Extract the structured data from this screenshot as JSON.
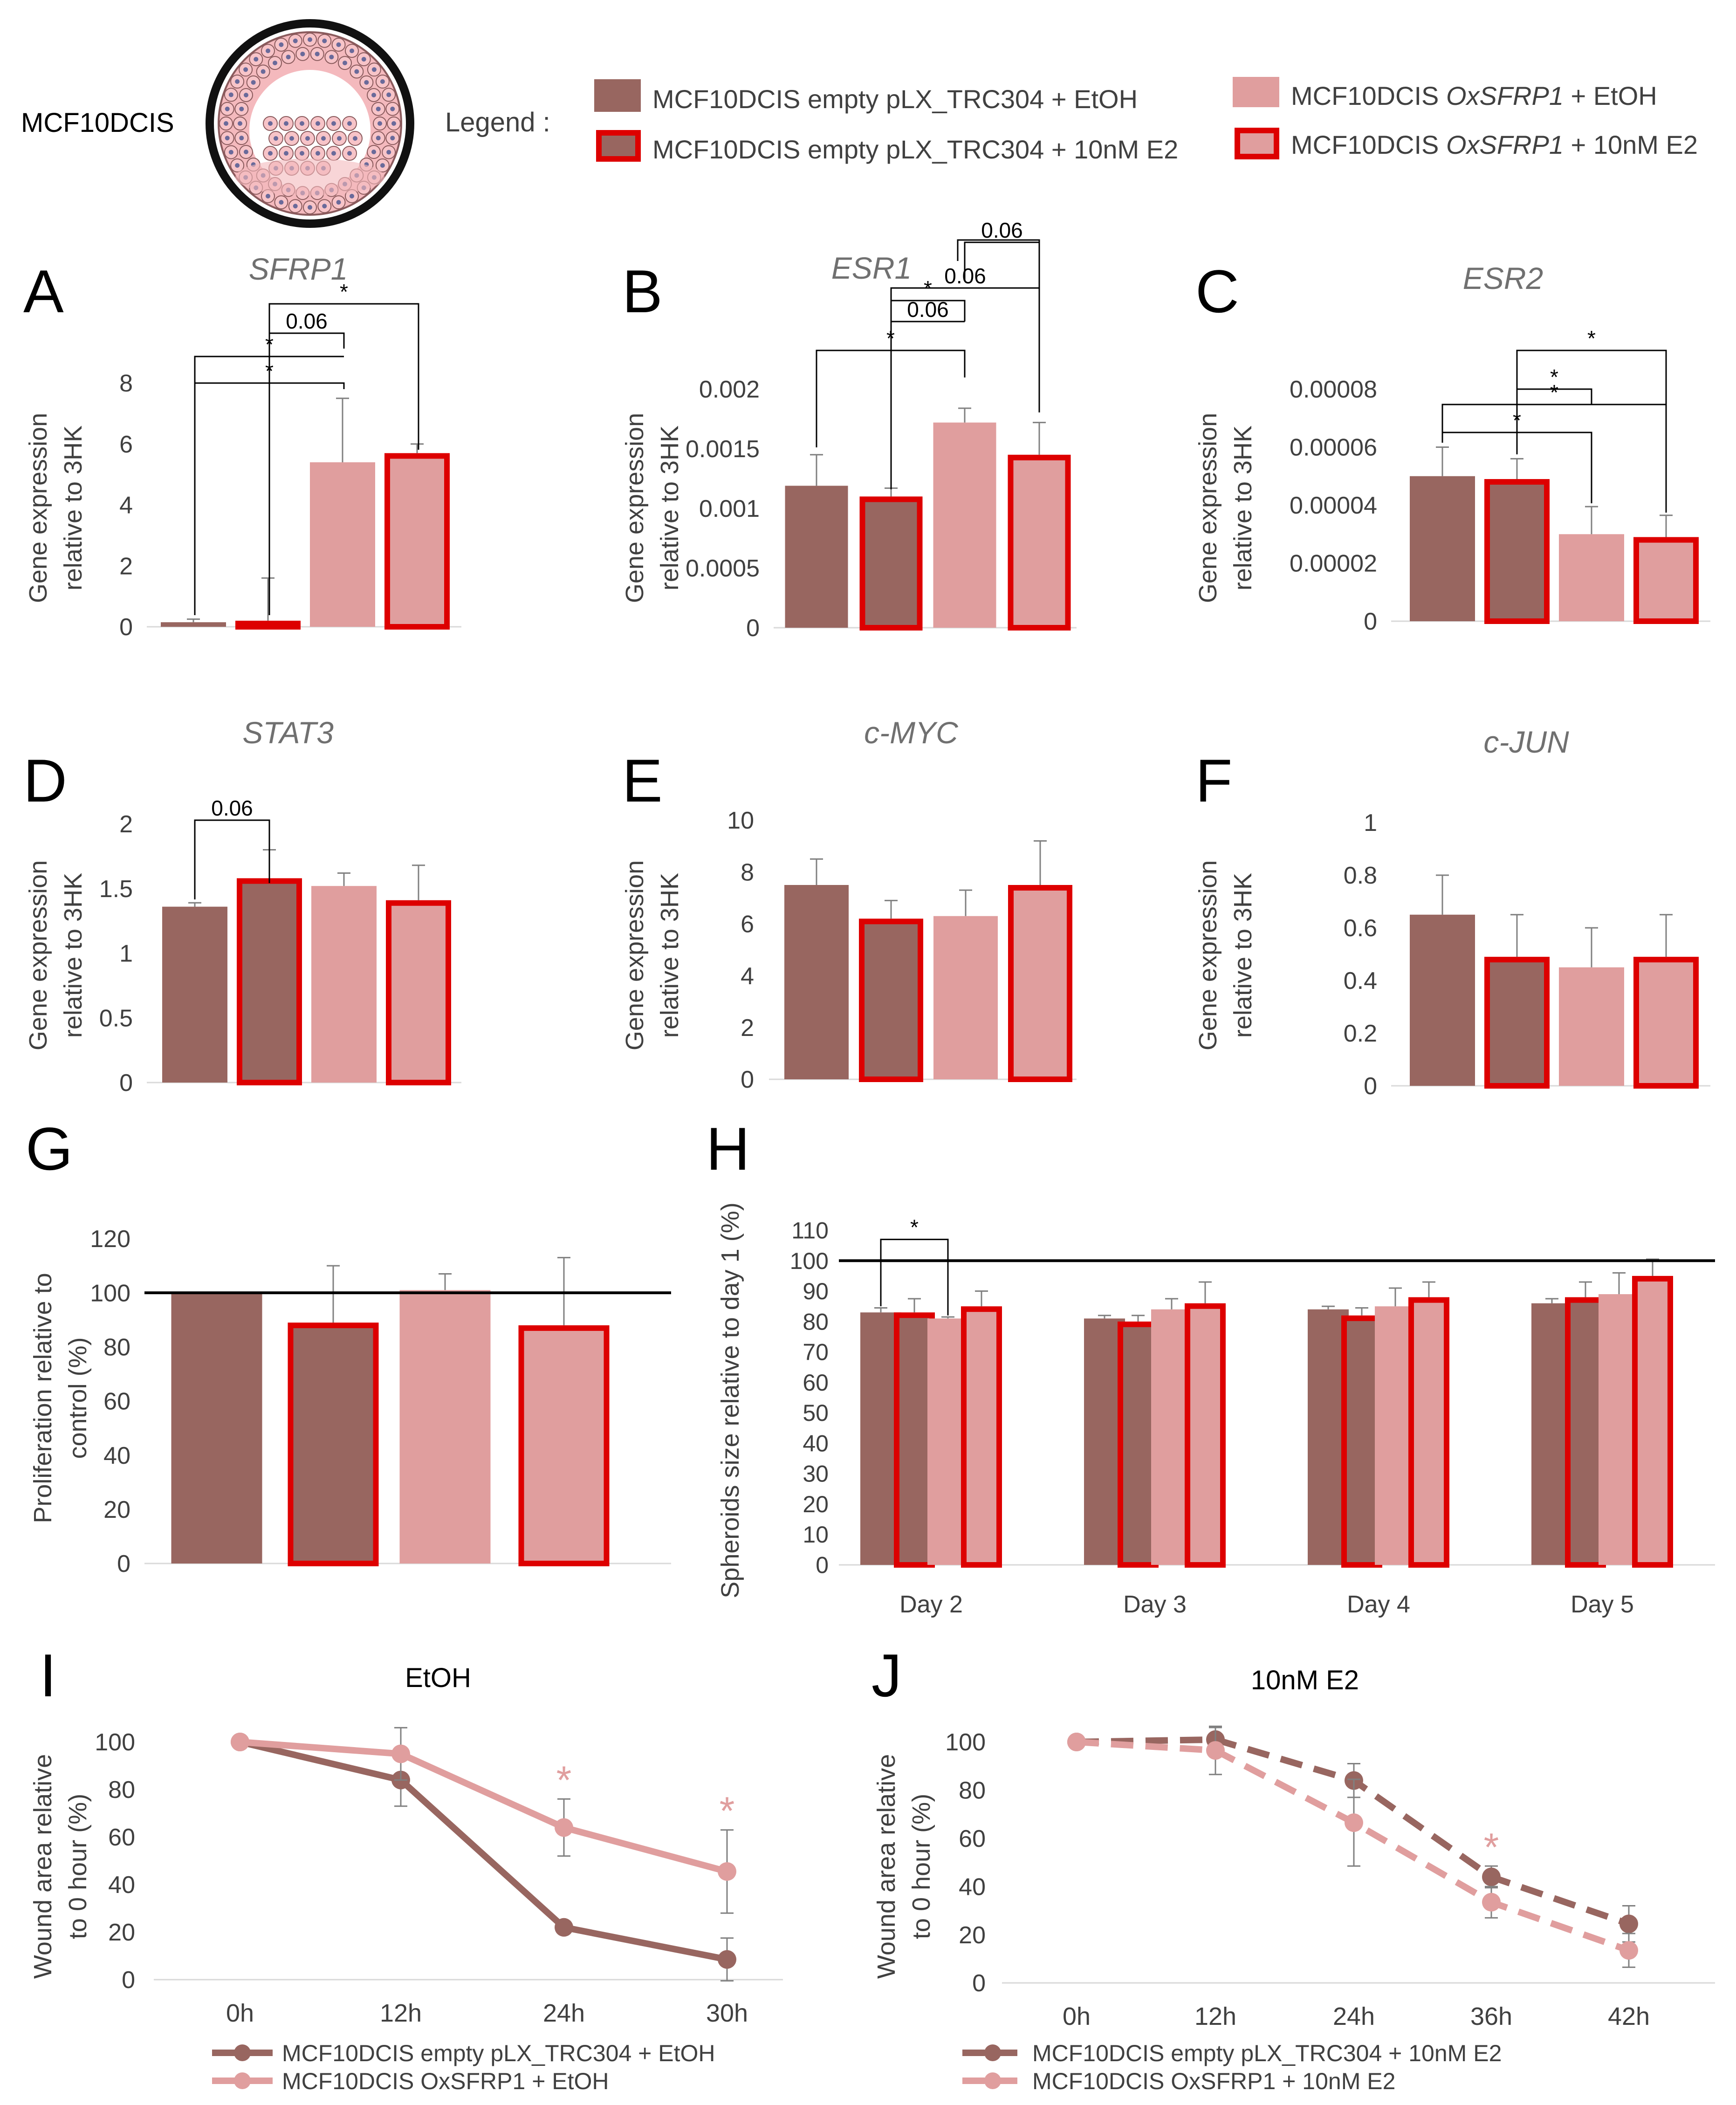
{
  "figure_label": "MCF10DCIS",
  "legend": {
    "title": "Legend :",
    "items": [
      {
        "key": "empty_etoh",
        "text": "MCF10DCIS empty pLX_TRC304 + EtOH",
        "fill": "#986660",
        "outline": false
      },
      {
        "key": "empty_e2",
        "text": "MCF10DCIS empty pLX_TRC304 + 10nM E2",
        "fill": "#986660",
        "outline": true
      },
      {
        "key": "ox_etoh",
        "text_pre": "MCF10DCIS ",
        "text_italic": "OxSFRP1",
        "text_post": " + EtOH",
        "fill": "#e09e9e",
        "outline": false
      },
      {
        "key": "ox_e2",
        "text_pre": "MCF10DCIS ",
        "text_italic": "OxSFRP1",
        "text_post": " + 10nM E2",
        "fill": "#e09e9e",
        "outline": true
      }
    ]
  },
  "colors": {
    "dark": "#986660",
    "light": "#e09e9e",
    "outline": "#dd0000",
    "axis_text": "#404040",
    "grid": "#d9d9d9",
    "title": "#707070"
  },
  "chart_data": [
    {
      "panel": "A",
      "type": "bar",
      "title": "SFRP1",
      "title_italic": true,
      "ylabel": [
        "Gene expression",
        "relative to 3HK"
      ],
      "ylim": [
        0,
        8
      ],
      "yticks": [
        "0",
        "2",
        "4",
        "6",
        "8"
      ],
      "ytick_values": [
        0,
        2,
        4,
        6,
        8
      ],
      "values": [
        0.15,
        0.2,
        5.4,
        5.7
      ],
      "errors": [
        0.1,
        1.4,
        2.1,
        0.3
      ],
      "sig": [
        {
          "a": 0,
          "b": 2,
          "label": "*"
        },
        {
          "a": 0,
          "b": 2,
          "label": "*"
        },
        {
          "a": 1,
          "b": 2,
          "label": "0.06"
        },
        {
          "a": 1,
          "b": 3,
          "label": "*"
        }
      ]
    },
    {
      "panel": "B",
      "type": "bar",
      "title": "ESR1",
      "title_italic": true,
      "ylabel": [
        "Gene expression",
        "relative to 3HK"
      ],
      "ylim": [
        0,
        0.002
      ],
      "yticks": [
        "0",
        "0.0005",
        "0.001",
        "0.0015",
        "0.002"
      ],
      "ytick_values": [
        0,
        0.0005,
        0.001,
        0.0015,
        0.002
      ],
      "values": [
        0.00119,
        0.0011,
        0.00172,
        0.00145
      ],
      "errors": [
        0.00026,
        7e-05,
        0.00012,
        0.00027
      ],
      "sig": [
        {
          "a": 0,
          "b": 2,
          "label": "*"
        },
        {
          "a": 1,
          "b": 2,
          "label": "0.06"
        },
        {
          "a": 1,
          "b": 2,
          "label": "*"
        },
        {
          "a": 1,
          "b": 3,
          "label": "0.06"
        },
        {
          "a": 2,
          "b": 3,
          "label": "0.06"
        }
      ]
    },
    {
      "panel": "C",
      "type": "bar",
      "title": "ESR2",
      "title_italic": true,
      "ylabel": [
        "Gene expression",
        "relative to 3HK"
      ],
      "ylim": [
        0,
        8e-05
      ],
      "yticks": [
        "0",
        "0.00002",
        "0.00004",
        "0.00006",
        "0.00008"
      ],
      "ytick_values": [
        0,
        2e-05,
        4e-05,
        6e-05,
        8e-05
      ],
      "values": [
        5e-05,
        4.9e-05,
        3e-05,
        2.9e-05
      ],
      "errors": [
        1e-05,
        7e-06,
        9.5e-06,
        7.5e-06
      ],
      "sig": [
        {
          "a": 0,
          "b": 2,
          "label": "*"
        },
        {
          "a": 0,
          "b": 3,
          "label": "*"
        },
        {
          "a": 1,
          "b": 2,
          "label": "*"
        },
        {
          "a": 1,
          "b": 3,
          "label": "*"
        }
      ]
    },
    {
      "panel": "D",
      "type": "bar",
      "title": "STAT3",
      "title_italic": true,
      "ylabel": [
        "Gene expression",
        "relative to 3HK"
      ],
      "ylim": [
        0,
        2
      ],
      "yticks": [
        "0",
        "0.5",
        "1",
        "1.5",
        "2"
      ],
      "ytick_values": [
        0,
        0.5,
        1,
        1.5,
        2
      ],
      "values": [
        1.36,
        1.58,
        1.52,
        1.41
      ],
      "errors": [
        0.03,
        0.22,
        0.1,
        0.27
      ],
      "sig": [
        {
          "a": 0,
          "b": 1,
          "label": "0.06"
        }
      ]
    },
    {
      "panel": "E",
      "type": "bar",
      "title": "c-MYC",
      "title_italic": true,
      "ylabel": [
        "Gene expression",
        "relative to 3HK"
      ],
      "ylim": [
        0,
        10
      ],
      "yticks": [
        "0",
        "2",
        "4",
        "6",
        "8",
        "10"
      ],
      "ytick_values": [
        0,
        2,
        4,
        6,
        8,
        10
      ],
      "values": [
        7.5,
        6.2,
        6.3,
        7.5
      ],
      "errors": [
        1.0,
        0.7,
        1.0,
        1.7
      ],
      "sig": []
    },
    {
      "panel": "F",
      "type": "bar",
      "title": "c-JUN",
      "title_italic": true,
      "ylabel": [
        "Gene expression",
        "relative to 3HK"
      ],
      "ylim": [
        0,
        1
      ],
      "yticks": [
        "0",
        "0.2",
        "0.4",
        "0.6",
        "0.8",
        "1"
      ],
      "ytick_values": [
        0,
        0.2,
        0.4,
        0.6,
        0.8,
        1
      ],
      "values": [
        0.65,
        0.49,
        0.45,
        0.49
      ],
      "errors": [
        0.15,
        0.16,
        0.15,
        0.16
      ],
      "sig": []
    },
    {
      "panel": "G",
      "type": "bar",
      "title": "",
      "ylabel": [
        "Proliferation relative to",
        "control (%)"
      ],
      "ylim": [
        0,
        120
      ],
      "yticks": [
        "0",
        "20",
        "40",
        "60",
        "80",
        "100",
        "120"
      ],
      "ytick_values": [
        0,
        20,
        40,
        60,
        80,
        100,
        120
      ],
      "values": [
        100,
        89,
        101,
        88
      ],
      "errors": [
        0,
        21,
        6,
        25
      ],
      "reference_line": 100,
      "sig": []
    },
    {
      "panel": "H",
      "type": "bar",
      "title": "",
      "ylabel": [
        "Spheroids size relative to day 1 (%)"
      ],
      "ylim": [
        0,
        110
      ],
      "yticks": [
        "0",
        "10",
        "20",
        "30",
        "40",
        "50",
        "60",
        "70",
        "80",
        "90",
        "100",
        "110"
      ],
      "ytick_values": [
        0,
        10,
        20,
        30,
        40,
        50,
        60,
        70,
        80,
        90,
        100,
        110
      ],
      "categories": [
        "Day 2",
        "Day 3",
        "Day 4",
        "Day 5"
      ],
      "series": [
        {
          "key": "empty_etoh",
          "values": [
            83,
            81,
            84,
            86
          ],
          "errors": [
            1.5,
            1,
            1,
            1.5
          ]
        },
        {
          "key": "empty_e2",
          "values": [
            83,
            80,
            82,
            88
          ],
          "errors": [
            4.5,
            2,
            2.5,
            5
          ]
        },
        {
          "key": "ox_etoh",
          "values": [
            81,
            84,
            85,
            89
          ],
          "errors": [
            0.5,
            3.5,
            6,
            7
          ]
        },
        {
          "key": "ox_e2",
          "values": [
            85,
            86,
            88,
            95
          ],
          "errors": [
            5,
            7,
            5,
            5.5
          ]
        }
      ],
      "reference_line": 100,
      "sig": [
        {
          "day": 0,
          "a": 0,
          "b": 2,
          "label": "*"
        }
      ]
    },
    {
      "panel": "I",
      "type": "line",
      "title": "EtOH",
      "ylabel": [
        "Wound area relative",
        "to 0 hour (%)"
      ],
      "ylim": [
        0,
        100
      ],
      "yticks": [
        "0",
        "20",
        "40",
        "60",
        "80",
        "100"
      ],
      "ytick_values": [
        0,
        20,
        40,
        60,
        80,
        100
      ],
      "x": [
        "0h",
        "12h",
        "24h",
        "30h"
      ],
      "series": [
        {
          "name": "MCF10DCIS empty pLX_TRC304 + EtOH",
          "color": "#986660",
          "dashed": false,
          "values": [
            100,
            84,
            22,
            8.5
          ],
          "errors": [
            0,
            11,
            0,
            9
          ]
        },
        {
          "name": "MCF10DCIS OxSFRP1 + EtOH",
          "color": "#e09e9e",
          "dashed": false,
          "values": [
            100,
            95,
            64,
            45.5
          ],
          "errors": [
            0,
            11,
            12,
            17.5
          ]
        }
      ],
      "stars": [
        {
          "index": 2,
          "label": "*"
        },
        {
          "index": 3,
          "label": "*"
        }
      ]
    },
    {
      "panel": "J",
      "type": "line",
      "title": "10nM E2",
      "ylabel": [
        "Wound area relative",
        "to 0 hour (%)"
      ],
      "ylim": [
        0,
        100
      ],
      "yticks": [
        "0",
        "20",
        "40",
        "60",
        "80",
        "100"
      ],
      "ytick_values": [
        0,
        20,
        40,
        60,
        80,
        100
      ],
      "x": [
        "0h",
        "12h",
        "24h",
        "36h",
        "42h"
      ],
      "series": [
        {
          "name": "MCF10DCIS empty pLX_TRC304 + 10nM E2",
          "color": "#986660",
          "dashed": true,
          "values": [
            100,
            101,
            84,
            44,
            24.5
          ],
          "errors": [
            0,
            5,
            7,
            4.5,
            7.5
          ]
        },
        {
          "name": "MCF10DCIS OxSFRP1 + 10nM E2",
          "color": "#e09e9e",
          "dashed": true,
          "values": [
            100,
            96.5,
            66.5,
            33.5,
            13.5
          ],
          "errors": [
            0,
            10,
            18,
            6.5,
            7
          ]
        }
      ],
      "stars": [
        {
          "index": 3,
          "label": "*"
        }
      ]
    }
  ]
}
